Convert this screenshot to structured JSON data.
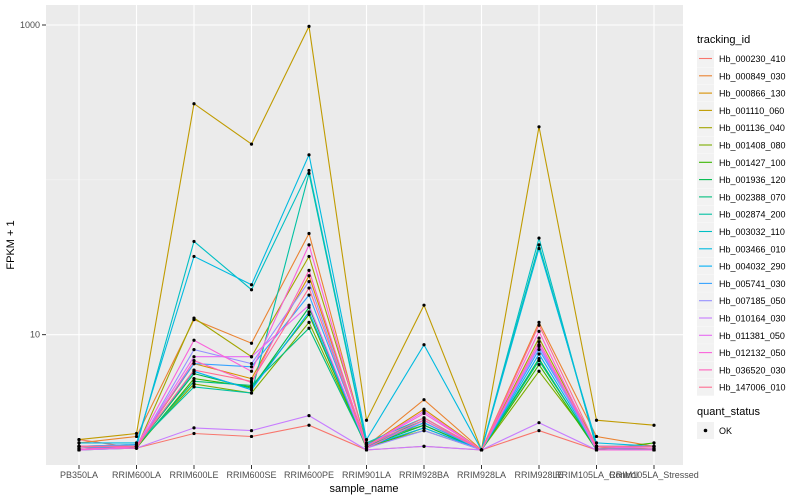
{
  "chart_data": {
    "type": "line",
    "title": "",
    "xlabel": "sample_name",
    "ylabel": "FPKM + 1",
    "y_scale": "log10",
    "ylim": [
      1.55,
      1000
    ],
    "y_ticks": [
      10,
      1000
    ],
    "grid": true,
    "legend_position": "right",
    "categories": [
      "PB350LA",
      "RRIM600LA",
      "RRIM600LE",
      "RRIM600SE",
      "RRIM600PE",
      "RRIM901LA",
      "RRIM928BA",
      "RRIM928LA",
      "RRIM928LE",
      "RRIM105LA_Control",
      "RRIM105LA_Stressed"
    ],
    "series": [
      {
        "name": "Hb_000230_410",
        "color": "#F8766D",
        "values": [
          2.1,
          1.85,
          2.3,
          2.2,
          2.6,
          1.8,
          1.9,
          1.8,
          2.4,
          1.8,
          1.8
        ]
      },
      {
        "name": "Hb_000849_030",
        "color": "#EA8331",
        "values": [
          2.0,
          2.2,
          12.5,
          8.8,
          45,
          1.9,
          3.8,
          1.8,
          12,
          2.2,
          1.9
        ]
      },
      {
        "name": "Hb_000866_130",
        "color": "#D89000",
        "values": [
          1.9,
          1.9,
          6.5,
          5.2,
          24,
          1.9,
          3.3,
          1.8,
          8.5,
          1.9,
          1.8
        ]
      },
      {
        "name": "Hb_001110_060",
        "color": "#C09B00",
        "values": [
          2.1,
          2.3,
          310,
          170,
          980,
          2.8,
          15.5,
          1.8,
          220,
          2.8,
          2.6
        ]
      },
      {
        "name": "Hb_001136_040",
        "color": "#A3A500",
        "values": [
          1.9,
          1.85,
          12.8,
          7.2,
          32,
          2.0,
          2.6,
          1.8,
          9.5,
          1.9,
          1.8
        ]
      },
      {
        "name": "Hb_001408_080",
        "color": "#7CAE00",
        "values": [
          1.9,
          1.9,
          4.8,
          4.2,
          12,
          1.9,
          2.4,
          1.8,
          5.8,
          1.9,
          1.9
        ]
      },
      {
        "name": "Hb_001427_100",
        "color": "#39B600",
        "values": [
          1.8,
          1.85,
          5.2,
          4.6,
          13.5,
          1.85,
          2.5,
          1.8,
          6.4,
          1.8,
          2.0
        ]
      },
      {
        "name": "Hb_001936_120",
        "color": "#00BB4E",
        "values": [
          1.8,
          1.9,
          5.6,
          4.5,
          15,
          1.9,
          2.6,
          1.8,
          7.0,
          1.8,
          1.8
        ]
      },
      {
        "name": "Hb_002388_070",
        "color": "#00BF7D",
        "values": [
          1.85,
          1.9,
          5.0,
          4.7,
          11,
          1.9,
          2.7,
          1.8,
          6.8,
          1.85,
          1.85
        ]
      },
      {
        "name": "Hb_002874_200",
        "color": "#00C1A3",
        "values": [
          1.9,
          1.95,
          4.6,
          4.2,
          110,
          1.95,
          2.8,
          1.8,
          38,
          1.9,
          1.9
        ]
      },
      {
        "name": "Hb_003032_110",
        "color": "#00BFC4",
        "values": [
          1.8,
          1.9,
          40,
          19.5,
          115,
          2.0,
          2.9,
          1.8,
          42,
          1.85,
          1.8
        ]
      },
      {
        "name": "Hb_003466_010",
        "color": "#00BAE0",
        "values": [
          2.0,
          2.0,
          32,
          21,
          145,
          2.1,
          8.6,
          1.8,
          36,
          2.0,
          1.9
        ]
      },
      {
        "name": "Hb_004032_290",
        "color": "#00B0F6",
        "values": [
          1.85,
          1.9,
          5.8,
          4.4,
          14,
          1.9,
          2.5,
          1.8,
          7.5,
          1.85,
          1.85
        ]
      },
      {
        "name": "Hb_005741_030",
        "color": "#35A2FF",
        "values": [
          1.9,
          1.95,
          6.5,
          6.2,
          18,
          1.95,
          2.7,
          1.8,
          8.0,
          1.9,
          1.9
        ]
      },
      {
        "name": "Hb_007185_050",
        "color": "#9590FF",
        "values": [
          1.8,
          1.85,
          8.0,
          6.5,
          22,
          1.85,
          2.4,
          1.8,
          8.4,
          1.8,
          1.8
        ]
      },
      {
        "name": "Hb_010164_030",
        "color": "#C77CFF",
        "values": [
          1.8,
          1.85,
          2.5,
          2.4,
          3.0,
          1.8,
          1.9,
          1.8,
          2.7,
          1.8,
          1.8
        ]
      },
      {
        "name": "Hb_011381_050",
        "color": "#E76BF3",
        "values": [
          1.9,
          1.9,
          7.2,
          7.2,
          15.5,
          1.9,
          3.2,
          1.8,
          8.6,
          1.9,
          1.85
        ]
      },
      {
        "name": "Hb_012132_050",
        "color": "#FA62DB",
        "values": [
          1.8,
          1.9,
          9.2,
          5.8,
          38,
          1.9,
          3.1,
          1.8,
          10.5,
          1.8,
          1.8
        ]
      },
      {
        "name": "Hb_036520_030",
        "color": "#FF62BC",
        "values": [
          1.85,
          1.85,
          6.8,
          4.9,
          26,
          1.85,
          2.8,
          1.8,
          9.0,
          1.85,
          1.85
        ]
      },
      {
        "name": "Hb_147006_010",
        "color": "#FF6C91",
        "values": [
          1.9,
          1.9,
          5.9,
          5.0,
          20,
          1.9,
          2.9,
          1.8,
          11.5,
          1.9,
          1.9
        ]
      }
    ]
  },
  "legend": {
    "title": "tracking_id",
    "shape_title": "quant_status",
    "shape_label": "OK"
  }
}
